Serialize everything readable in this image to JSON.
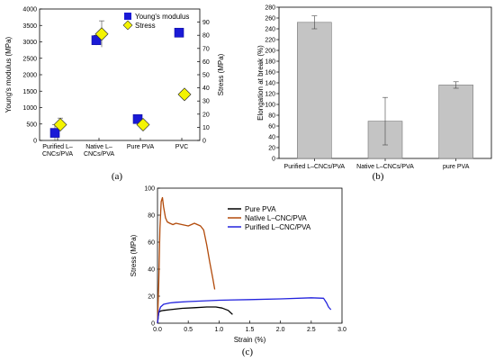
{
  "chart_data": [
    {
      "id": "a",
      "type": "scatter",
      "panel_label": "(a)",
      "categories": [
        "Purified L–\nCNCs/PVA",
        "Native L–\nCNCs/PVA",
        "Pure PVA",
        "PVC"
      ],
      "ylabel_left": "Young's modulus (MPa)",
      "ylabel_right": "Stress (MPa)",
      "ylim_left": [
        0,
        4000
      ],
      "ylim_right": [
        0,
        100
      ],
      "yticks_left": [
        0,
        500,
        1000,
        1500,
        2000,
        2500,
        3000,
        3500,
        4000
      ],
      "yticks_right": [
        0,
        10,
        20,
        30,
        40,
        50,
        60,
        70,
        80,
        90
      ],
      "series": [
        {
          "name": "Young's modulus",
          "marker": "square",
          "color": "#1a1ad6",
          "values": [
            230,
            3050,
            650,
            3280
          ],
          "errors": [
            250,
            150,
            80,
            0
          ]
        },
        {
          "name": "Stress",
          "marker": "diamond",
          "color": "#f4f400",
          "values": [
            12,
            81,
            12,
            35
          ],
          "errors": [
            5,
            10,
            3,
            0
          ]
        }
      ],
      "legend": "top-right"
    },
    {
      "id": "b",
      "type": "bar",
      "panel_label": "(b)",
      "categories": [
        "Purified L–CNCs/PVA",
        "Native L–CNCs/PVA",
        "pure PVA"
      ],
      "values": [
        252,
        69,
        136
      ],
      "errors": [
        12,
        44,
        6
      ],
      "bar_color": "#c4c4c4",
      "ylabel": "Elongation at break (%)",
      "ylim": [
        0,
        280
      ],
      "yticks": [
        0,
        20,
        40,
        60,
        80,
        100,
        120,
        140,
        160,
        180,
        200,
        220,
        240,
        260,
        280
      ]
    },
    {
      "id": "c",
      "type": "line",
      "panel_label": "(c)",
      "xlabel": "Strain (%)",
      "ylabel": "Stress (MPa)",
      "xlim": [
        0,
        3.0
      ],
      "ylim": [
        0,
        100
      ],
      "xticks": [
        "0.0",
        "0.5",
        "1.0",
        "1.5",
        "2.0",
        "2.5",
        "3.0"
      ],
      "yticks": [
        0,
        20,
        40,
        60,
        80,
        100
      ],
      "legend": "top-right",
      "series": [
        {
          "name": "Pure PVA",
          "color": "#000000",
          "x": [
            0,
            0.02,
            0.05,
            0.1,
            0.2,
            0.4,
            0.6,
            0.8,
            0.95,
            1.05,
            1.15,
            1.22
          ],
          "y": [
            0,
            8,
            9,
            9.5,
            10,
            11,
            11.5,
            12,
            12,
            11.2,
            9.5,
            6.5
          ]
        },
        {
          "name": "Native L–CNC/PVA",
          "color": "#b24a0a",
          "x": [
            0,
            0.02,
            0.04,
            0.06,
            0.08,
            0.1,
            0.13,
            0.16,
            0.2,
            0.25,
            0.3,
            0.4,
            0.5,
            0.6,
            0.7,
            0.75,
            0.8,
            0.85,
            0.9,
            0.93
          ],
          "y": [
            0,
            30,
            70,
            90,
            93,
            86,
            78,
            75,
            74,
            73,
            74,
            73,
            72,
            74,
            72,
            69,
            58,
            45,
            33,
            25
          ]
        },
        {
          "name": "Purified L–CNC/PVA",
          "color": "#2222dd",
          "x": [
            0,
            0.02,
            0.05,
            0.1,
            0.2,
            0.3,
            0.5,
            1.0,
            1.5,
            2.0,
            2.5,
            2.7,
            2.75,
            2.78,
            2.82
          ],
          "y": [
            0,
            8,
            12,
            14,
            15,
            15.5,
            16,
            17,
            17.5,
            18,
            18.8,
            18.5,
            15,
            12,
            10
          ]
        }
      ]
    }
  ]
}
